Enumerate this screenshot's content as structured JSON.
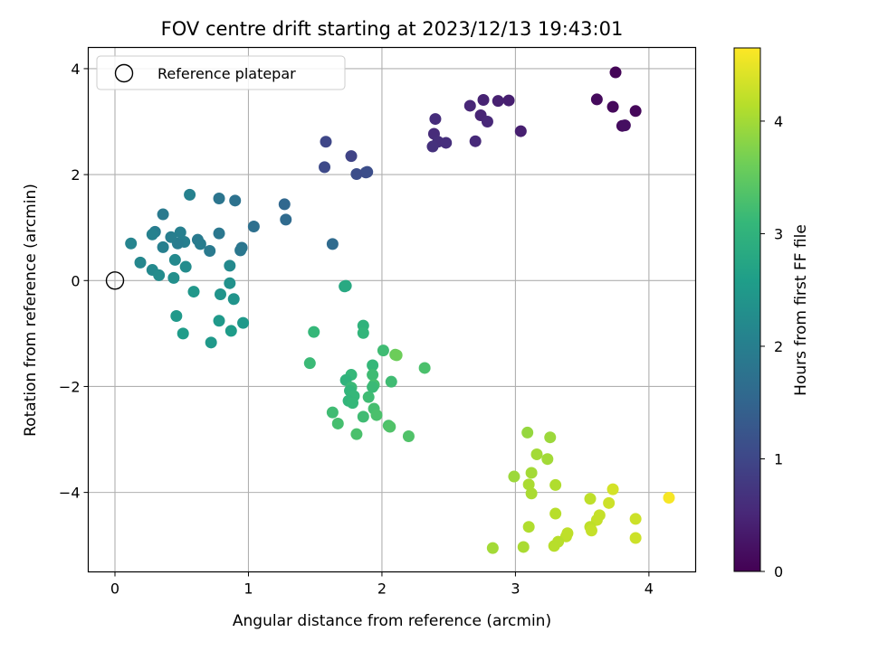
{
  "chart_data": {
    "type": "scatter",
    "title": "FOV centre drift starting at 2023/12/13 19:43:01",
    "xlabel": "Angular distance from reference (arcmin)",
    "ylabel": "Rotation from reference (arcmin)",
    "xlim": [
      -0.2,
      4.35
    ],
    "ylim": [
      -5.5,
      4.4
    ],
    "xticks": [
      0,
      1,
      2,
      3,
      4
    ],
    "yticks": [
      -4,
      -2,
      0,
      2,
      4
    ],
    "grid": true,
    "legend": {
      "placement": "top-left",
      "entries": [
        "Reference platepar"
      ]
    },
    "reference_point": {
      "x": 0,
      "y": 0
    },
    "colorbar": {
      "label": "Hours from first FF file",
      "range": [
        0,
        4.65
      ],
      "ticks": [
        0,
        1,
        2,
        3,
        4
      ],
      "colormap": [
        "#440154",
        "#482878",
        "#3e4989",
        "#31688e",
        "#26828e",
        "#1f9e89",
        "#35b779",
        "#6ece58",
        "#b5de2b",
        "#fde725"
      ]
    },
    "points": [
      {
        "x": 3.75,
        "y": 3.93,
        "c": 0.05
      },
      {
        "x": 3.61,
        "y": 3.42,
        "c": 0.12
      },
      {
        "x": 3.73,
        "y": 3.28,
        "c": 0.1
      },
      {
        "x": 3.9,
        "y": 3.2,
        "c": 0.08
      },
      {
        "x": 3.8,
        "y": 2.92,
        "c": 0.15
      },
      {
        "x": 3.82,
        "y": 2.93,
        "c": 0.18
      },
      {
        "x": 2.95,
        "y": 3.4,
        "c": 0.4
      },
      {
        "x": 2.87,
        "y": 3.39,
        "c": 0.42
      },
      {
        "x": 2.76,
        "y": 3.41,
        "c": 0.45
      },
      {
        "x": 2.66,
        "y": 3.3,
        "c": 0.5
      },
      {
        "x": 2.74,
        "y": 3.12,
        "c": 0.48
      },
      {
        "x": 2.79,
        "y": 3.0,
        "c": 0.52
      },
      {
        "x": 2.4,
        "y": 3.05,
        "c": 0.6
      },
      {
        "x": 2.39,
        "y": 2.77,
        "c": 0.58
      },
      {
        "x": 2.42,
        "y": 2.62,
        "c": 0.62
      },
      {
        "x": 2.38,
        "y": 2.53,
        "c": 0.65
      },
      {
        "x": 2.48,
        "y": 2.6,
        "c": 0.63
      },
      {
        "x": 2.7,
        "y": 2.63,
        "c": 0.55
      },
      {
        "x": 3.04,
        "y": 2.82,
        "c": 0.4
      },
      {
        "x": 1.58,
        "y": 2.62,
        "c": 1.0
      },
      {
        "x": 1.57,
        "y": 2.14,
        "c": 1.05
      },
      {
        "x": 1.77,
        "y": 2.35,
        "c": 0.95
      },
      {
        "x": 1.81,
        "y": 2.01,
        "c": 1.1
      },
      {
        "x": 1.88,
        "y": 2.04,
        "c": 1.08
      },
      {
        "x": 1.89,
        "y": 2.05,
        "c": 1.12
      },
      {
        "x": 1.27,
        "y": 1.44,
        "c": 1.55
      },
      {
        "x": 1.28,
        "y": 1.15,
        "c": 1.6
      },
      {
        "x": 1.63,
        "y": 0.69,
        "c": 1.6
      },
      {
        "x": 1.04,
        "y": 1.02,
        "c": 1.7
      },
      {
        "x": 0.9,
        "y": 1.51,
        "c": 1.75
      },
      {
        "x": 0.78,
        "y": 1.55,
        "c": 1.8
      },
      {
        "x": 0.56,
        "y": 1.62,
        "c": 2.05
      },
      {
        "x": 0.36,
        "y": 1.25,
        "c": 1.9
      },
      {
        "x": 0.78,
        "y": 0.89,
        "c": 1.85
      },
      {
        "x": 0.95,
        "y": 0.62,
        "c": 1.8
      },
      {
        "x": 0.94,
        "y": 0.57,
        "c": 1.85
      },
      {
        "x": 0.62,
        "y": 0.77,
        "c": 1.9
      },
      {
        "x": 0.64,
        "y": 0.69,
        "c": 1.95
      },
      {
        "x": 0.71,
        "y": 0.56,
        "c": 1.9
      },
      {
        "x": 0.49,
        "y": 0.91,
        "c": 2.0
      },
      {
        "x": 0.52,
        "y": 0.73,
        "c": 2.0
      },
      {
        "x": 0.47,
        "y": 0.7,
        "c": 1.95
      },
      {
        "x": 0.42,
        "y": 0.82,
        "c": 1.98
      },
      {
        "x": 0.36,
        "y": 0.63,
        "c": 2.0
      },
      {
        "x": 0.3,
        "y": 0.92,
        "c": 1.95
      },
      {
        "x": 0.28,
        "y": 0.87,
        "c": 2.05
      },
      {
        "x": 0.12,
        "y": 0.7,
        "c": 2.1
      },
      {
        "x": 0.19,
        "y": 0.34,
        "c": 2.15
      },
      {
        "x": 0.28,
        "y": 0.2,
        "c": 2.2
      },
      {
        "x": 0.33,
        "y": 0.1,
        "c": 2.25
      },
      {
        "x": 0.45,
        "y": 0.39,
        "c": 2.2
      },
      {
        "x": 0.44,
        "y": 0.05,
        "c": 2.3
      },
      {
        "x": 0.53,
        "y": 0.26,
        "c": 2.25
      },
      {
        "x": 0.86,
        "y": 0.28,
        "c": 2.2
      },
      {
        "x": 0.86,
        "y": -0.05,
        "c": 2.35
      },
      {
        "x": 0.79,
        "y": -0.26,
        "c": 2.4
      },
      {
        "x": 0.89,
        "y": -0.35,
        "c": 2.4
      },
      {
        "x": 0.59,
        "y": -0.21,
        "c": 2.45
      },
      {
        "x": 0.46,
        "y": -0.67,
        "c": 2.5
      },
      {
        "x": 0.51,
        "y": -1.0,
        "c": 2.55
      },
      {
        "x": 0.72,
        "y": -1.17,
        "c": 2.5
      },
      {
        "x": 0.78,
        "y": -0.76,
        "c": 2.5
      },
      {
        "x": 0.87,
        "y": -0.95,
        "c": 2.55
      },
      {
        "x": 0.96,
        "y": -0.8,
        "c": 2.5
      },
      {
        "x": 1.72,
        "y": -0.11,
        "c": 2.8
      },
      {
        "x": 1.73,
        "y": -0.1,
        "c": 2.82
      },
      {
        "x": 1.49,
        "y": -0.97,
        "c": 3.1
      },
      {
        "x": 1.46,
        "y": -1.56,
        "c": 3.15
      },
      {
        "x": 1.86,
        "y": -0.85,
        "c": 3.0
      },
      {
        "x": 1.86,
        "y": -0.99,
        "c": 3.05
      },
      {
        "x": 2.01,
        "y": -1.32,
        "c": 3.2
      },
      {
        "x": 2.1,
        "y": -1.4,
        "c": 3.55
      },
      {
        "x": 2.11,
        "y": -1.41,
        "c": 3.6
      },
      {
        "x": 1.93,
        "y": -1.6,
        "c": 3.1
      },
      {
        "x": 2.32,
        "y": -1.65,
        "c": 3.3
      },
      {
        "x": 1.77,
        "y": -1.78,
        "c": 3.1
      },
      {
        "x": 1.73,
        "y": -1.88,
        "c": 3.0
      },
      {
        "x": 1.93,
        "y": -1.78,
        "c": 3.2
      },
      {
        "x": 1.94,
        "y": -1.97,
        "c": 3.25
      },
      {
        "x": 1.77,
        "y": -2.02,
        "c": 3.15
      },
      {
        "x": 1.76,
        "y": -2.08,
        "c": 3.05
      },
      {
        "x": 1.79,
        "y": -2.18,
        "c": 3.1
      },
      {
        "x": 1.75,
        "y": -2.27,
        "c": 3.05
      },
      {
        "x": 1.78,
        "y": -2.31,
        "c": 3.1
      },
      {
        "x": 1.9,
        "y": -2.2,
        "c": 3.2
      },
      {
        "x": 1.93,
        "y": -2.01,
        "c": 3.15
      },
      {
        "x": 2.07,
        "y": -1.91,
        "c": 3.2
      },
      {
        "x": 1.94,
        "y": -2.42,
        "c": 3.25
      },
      {
        "x": 1.96,
        "y": -2.54,
        "c": 3.3
      },
      {
        "x": 1.86,
        "y": -2.57,
        "c": 3.2
      },
      {
        "x": 2.05,
        "y": -2.74,
        "c": 3.3
      },
      {
        "x": 2.06,
        "y": -2.76,
        "c": 3.35
      },
      {
        "x": 1.63,
        "y": -2.49,
        "c": 3.2
      },
      {
        "x": 1.67,
        "y": -2.7,
        "c": 3.25
      },
      {
        "x": 1.81,
        "y": -2.9,
        "c": 3.3
      },
      {
        "x": 2.2,
        "y": -2.94,
        "c": 3.35
      },
      {
        "x": 3.09,
        "y": -2.87,
        "c": 3.9
      },
      {
        "x": 3.26,
        "y": -2.96,
        "c": 3.95
      },
      {
        "x": 3.16,
        "y": -3.28,
        "c": 4.0
      },
      {
        "x": 3.24,
        "y": -3.37,
        "c": 4.0
      },
      {
        "x": 2.99,
        "y": -3.7,
        "c": 3.95
      },
      {
        "x": 3.12,
        "y": -3.63,
        "c": 4.0
      },
      {
        "x": 3.1,
        "y": -3.85,
        "c": 4.05
      },
      {
        "x": 3.12,
        "y": -4.02,
        "c": 4.05
      },
      {
        "x": 3.3,
        "y": -3.86,
        "c": 4.1
      },
      {
        "x": 3.56,
        "y": -4.12,
        "c": 4.2
      },
      {
        "x": 3.73,
        "y": -3.94,
        "c": 4.35
      },
      {
        "x": 3.7,
        "y": -4.2,
        "c": 4.3
      },
      {
        "x": 4.15,
        "y": -4.1,
        "c": 4.6
      },
      {
        "x": 3.63,
        "y": -4.43,
        "c": 4.25
      },
      {
        "x": 3.61,
        "y": -4.52,
        "c": 4.25
      },
      {
        "x": 3.56,
        "y": -4.65,
        "c": 4.2
      },
      {
        "x": 3.57,
        "y": -4.72,
        "c": 4.25
      },
      {
        "x": 3.3,
        "y": -4.4,
        "c": 4.15
      },
      {
        "x": 3.1,
        "y": -4.65,
        "c": 4.1
      },
      {
        "x": 3.39,
        "y": -4.77,
        "c": 4.2
      },
      {
        "x": 3.38,
        "y": -4.83,
        "c": 4.2
      },
      {
        "x": 3.32,
        "y": -4.93,
        "c": 4.15
      },
      {
        "x": 3.29,
        "y": -5.01,
        "c": 4.15
      },
      {
        "x": 3.06,
        "y": -5.03,
        "c": 4.05
      },
      {
        "x": 2.83,
        "y": -5.05,
        "c": 4.0
      },
      {
        "x": 3.9,
        "y": -4.5,
        "c": 4.3
      },
      {
        "x": 3.9,
        "y": -4.86,
        "c": 4.3
      }
    ]
  }
}
